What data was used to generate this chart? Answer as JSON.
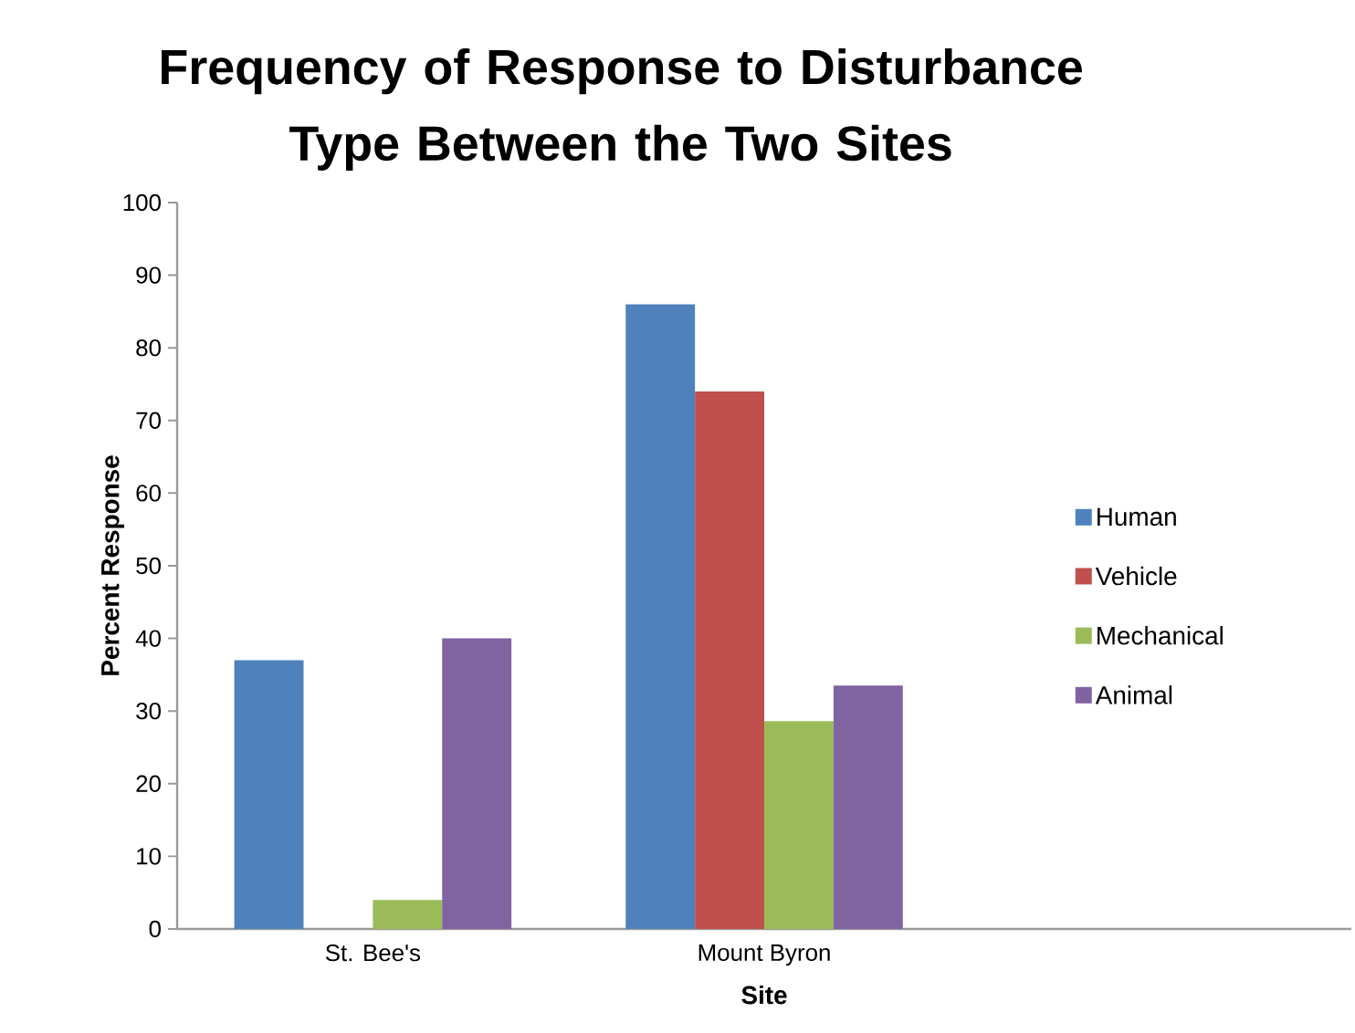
{
  "chart_data": {
    "type": "bar",
    "title": "Frequency of Response to Disturbance Type Between the Two Sites",
    "xlabel": "Site",
    "ylabel": "Percent Response",
    "categories": [
      "St. Bee's",
      "Mount Byron",
      null
    ],
    "series": [
      {
        "name": "Human",
        "color": "#4f81bd",
        "values": [
          37,
          86,
          null
        ]
      },
      {
        "name": "Vehicle",
        "color": "#c0504d",
        "values": [
          0,
          74,
          null
        ]
      },
      {
        "name": "Mechanical",
        "color": "#9bbb59",
        "values": [
          4,
          28.6,
          null
        ]
      },
      {
        "name": "Animal",
        "color": "#8064a2",
        "values": [
          40,
          33.5,
          null
        ]
      }
    ],
    "ylim": [
      0,
      100
    ],
    "yticks": [
      0,
      10,
      20,
      30,
      40,
      50,
      60,
      70,
      80,
      90,
      100
    ],
    "legend": "right"
  }
}
